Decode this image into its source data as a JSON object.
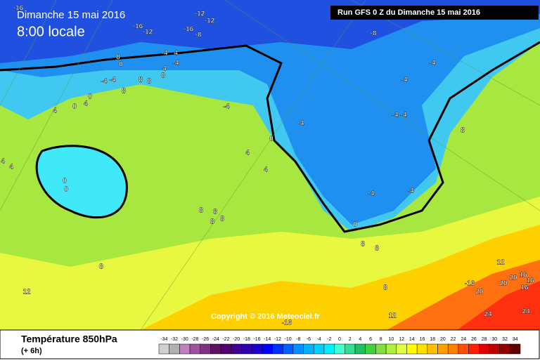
{
  "header": {
    "date": "Dimanche 15 mai 2016",
    "time": "8:00 locale",
    "run": "Run GFS 0 Z du Dimanche 15 mai 2016"
  },
  "map": {
    "labels": [
      "-16",
      "-12",
      "-12",
      "-16",
      "-12",
      "-16",
      "-8",
      "-8",
      "0",
      "0",
      "-4",
      "4",
      "-4",
      "4",
      "8",
      "8",
      "8",
      "-4",
      "-4",
      "8",
      "0",
      "4",
      "0",
      "4",
      "-4",
      "-4",
      "-4",
      "-4",
      "-4",
      "-4",
      "0",
      "8",
      "4",
      "4",
      "4",
      "4",
      "0",
      "0",
      "8",
      "8",
      "8",
      "8",
      "-4",
      "-4",
      "0",
      "8",
      "8",
      "12",
      "8",
      "12",
      "8",
      "-16",
      "20",
      "20",
      "20",
      "16",
      "16",
      "16",
      "12",
      "24",
      "24",
      "-16"
    ],
    "copyright": "Copyright © 2016 Meteociel.fr"
  },
  "footer": {
    "title": "Température 850hPa",
    "step": "(+ 6h)"
  },
  "scale": {
    "values": [
      -34,
      -32,
      -30,
      -28,
      -26,
      -24,
      -22,
      -20,
      -18,
      -16,
      -14,
      -12,
      -10,
      -8,
      -6,
      -4,
      -2,
      0,
      2,
      4,
      6,
      8,
      10,
      12,
      14,
      16,
      18,
      20,
      22,
      24,
      26,
      28,
      30,
      32,
      34
    ],
    "colors": [
      "#d0d0d0",
      "#b0b0b0",
      "#c080c0",
      "#a050a0",
      "#803080",
      "#601060",
      "#500070",
      "#400090",
      "#3000b0",
      "#2000d0",
      "#0000ff",
      "#0030ff",
      "#0060ff",
      "#0090ff",
      "#00b0ff",
      "#00d0ff",
      "#00f0ff",
      "#40ffd0",
      "#30e090",
      "#20c060",
      "#40d040",
      "#80e040",
      "#b0f040",
      "#e0ff40",
      "#ffff00",
      "#ffe000",
      "#ffc000",
      "#ffa000",
      "#ff8000",
      "#ff5000",
      "#ff2000",
      "#e00000",
      "#c00000",
      "#900000",
      "#600000"
    ]
  }
}
